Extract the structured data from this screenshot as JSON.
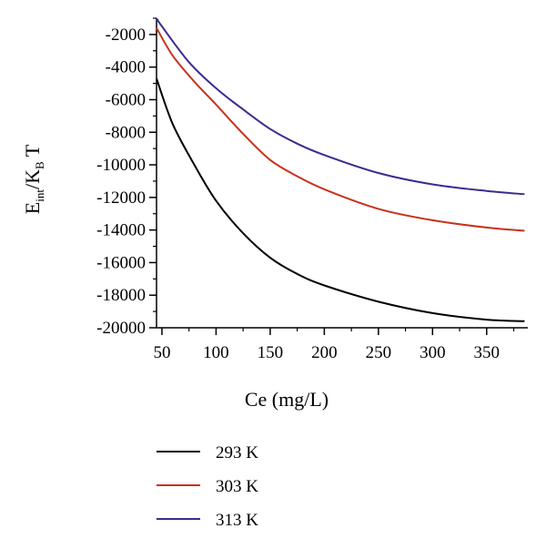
{
  "chart_data": {
    "type": "line",
    "title": "",
    "xlabel": "Ce (mg/L)",
    "ylabel": {
      "base": "E",
      "sub1": "int",
      "mid": "/K",
      "sub2": "B",
      "end": " T"
    },
    "xlim": [
      45,
      388
    ],
    "ylim": [
      -20000,
      -1000
    ],
    "x_ticks": [
      50,
      100,
      150,
      200,
      250,
      300,
      350
    ],
    "y_ticks": [
      -2000,
      -4000,
      -6000,
      -8000,
      -10000,
      -12000,
      -14000,
      -16000,
      -18000,
      -20000
    ],
    "x_tick_labels": [
      "50",
      "100",
      "150",
      "200",
      "250",
      "300",
      "350"
    ],
    "y_tick_labels": [
      "-2000",
      "-4000",
      "-6000",
      "-8000",
      "-10000",
      "-12000",
      "-14000",
      "-16000",
      "-18000",
      "-20000"
    ],
    "grid": false,
    "legend": "bottom-left",
    "series": [
      {
        "name": "293 K",
        "color": "#000000",
        "x": [
          45,
          60,
          80,
          100,
          125,
          150,
          175,
          200,
          250,
          300,
          350,
          385
        ],
        "y": [
          -4700,
          -7500,
          -10000,
          -12200,
          -14200,
          -15700,
          -16700,
          -17400,
          -18400,
          -19100,
          -19500,
          -19600
        ]
      },
      {
        "name": "303 K",
        "color": "#c8321c",
        "x": [
          45,
          60,
          80,
          100,
          125,
          150,
          175,
          200,
          250,
          300,
          350,
          385
        ],
        "y": [
          -1600,
          -3300,
          -4900,
          -6300,
          -8100,
          -9700,
          -10700,
          -11500,
          -12700,
          -13400,
          -13850,
          -14050
        ]
      },
      {
        "name": "313 K",
        "color": "#3b2b8f",
        "x": [
          45,
          50,
          75,
          100,
          125,
          150,
          175,
          200,
          250,
          300,
          350,
          385
        ],
        "y": [
          -1000,
          -1500,
          -3700,
          -5300,
          -6600,
          -7800,
          -8700,
          -9400,
          -10500,
          -11200,
          -11600,
          -11800
        ]
      }
    ]
  }
}
